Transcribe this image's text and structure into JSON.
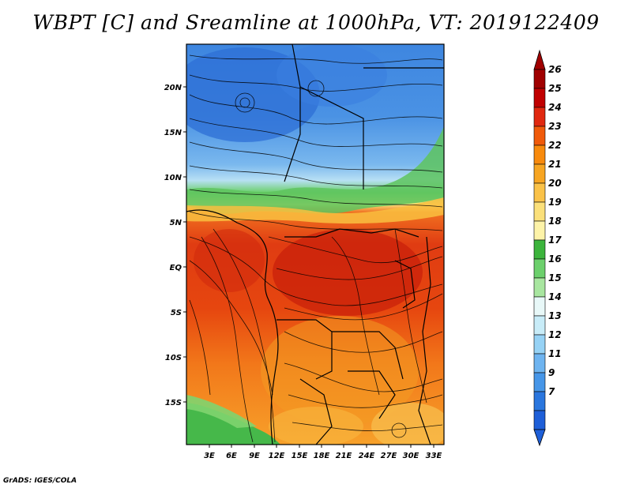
{
  "title": "WBPT [C] and Sreamline at 1000hPa, VT: 2019122409",
  "credit": "GrADS: IGES/COLA",
  "map": {
    "lat_ticks": [
      "20N",
      "15N",
      "10N",
      "5N",
      "EQ",
      "5S",
      "10S",
      "15S"
    ],
    "lon_ticks": [
      "3E",
      "6E",
      "9E",
      "12E",
      "15E",
      "18E",
      "21E",
      "24E",
      "27E",
      "30E",
      "33E"
    ],
    "regions": {
      "north": "cool (9-14 C)",
      "sahel_band": "mild (15-19 C)",
      "equatorial": "warm (22-25 C)",
      "southwest_coast": "mild (16-18 C)",
      "south": "warm (20-24 C)"
    }
  },
  "colorbar": {
    "labels": [
      "26",
      "25",
      "24",
      "23",
      "22",
      "21",
      "20",
      "19",
      "18",
      "17",
      "16",
      "15",
      "14",
      "13",
      "12",
      "11",
      "9",
      "7"
    ],
    "colors": [
      "#a00000",
      "#c00000",
      "#e0280f",
      "#f05a0a",
      "#f88a0c",
      "#f7a521",
      "#fac248",
      "#fbe07a",
      "#fdf3a8",
      "#3cb43c",
      "#6cd06c",
      "#a8e6a0",
      "#e8f8f8",
      "#c8ecf8",
      "#96d2f5",
      "#6eb4f0",
      "#4696e8",
      "#2a76de",
      "#1e5fd8"
    ],
    "top_arrow_color": "#a00000",
    "bottom_arrow_color": "#1e5fd8"
  }
}
